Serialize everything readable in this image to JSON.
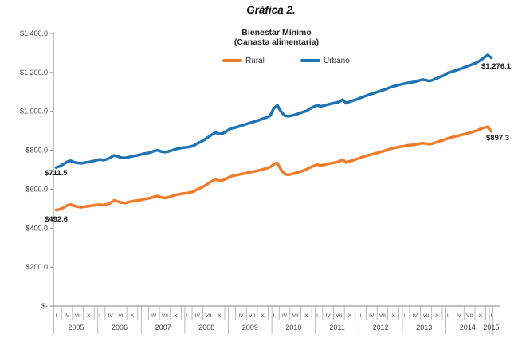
{
  "page": {
    "title": "Gráfica 2."
  },
  "chart": {
    "title_line1": "Bienestar Mínimo",
    "title_line2": "(Canasta alimentaria)",
    "legend": [
      {
        "name": "Rural",
        "color": "#f07c2b"
      },
      {
        "name": "Urbano",
        "color": "#1e73b5"
      }
    ],
    "annotations": {
      "urbano_start": "$711.5",
      "rural_start": "$492.6",
      "urbano_end": "$1,276.1",
      "rural_end": "$897.3"
    }
  },
  "chart_data": {
    "type": "line",
    "title": "Bienestar Mínimo (Canasta alimentaria)",
    "ylabel": "",
    "xlabel": "",
    "ylim": [
      0,
      1400
    ],
    "grid": false,
    "legend_position": "top-center",
    "axis_color": "#808080",
    "separator_color": "#ababab",
    "text_color": "#3c3c3c",
    "y_ticks": [
      {
        "label": "$1,400.0",
        "value": 1400
      },
      {
        "label": "$1,200.0",
        "value": 1200
      },
      {
        "label": "$1,000.0",
        "value": 1000
      },
      {
        "label": "$800.0",
        "value": 800
      },
      {
        "label": "$600.0",
        "value": 600
      },
      {
        "label": "$400.0",
        "value": 400
      },
      {
        "label": "$200.0",
        "value": 200
      },
      {
        "label": "$-",
        "value": 0
      }
    ],
    "x_axis": {
      "frequency": "monthly",
      "start": "2005-01",
      "end": "2015-01",
      "month_tick_labels": [
        "I",
        "IV",
        "VII",
        "X"
      ],
      "years": [
        {
          "label": "2005",
          "months": 12
        },
        {
          "label": "2006",
          "months": 12
        },
        {
          "label": "2007",
          "months": 12
        },
        {
          "label": "2008",
          "months": 12
        },
        {
          "label": "2009",
          "months": 12
        },
        {
          "label": "2010",
          "months": 12
        },
        {
          "label": "2011",
          "months": 12
        },
        {
          "label": "2012",
          "months": 12
        },
        {
          "label": "2013",
          "months": 12
        },
        {
          "label": "2014",
          "months": 12
        },
        {
          "label": "2015",
          "months": 1
        }
      ]
    },
    "series": [
      {
        "name": "Rural",
        "color": "#f07c2b",
        "first_value": 492.6,
        "last_value": 897.3,
        "values": [
          492.6,
          496.8,
          504.9,
          516.8,
          521.9,
          513.8,
          509.9,
          507.8,
          510.9,
          512.8,
          515.9,
          518.8,
          520.9,
          517.8,
          521.9,
          529.8,
          542.6,
          536.8,
          530.9,
          528.8,
          533.7,
          537.8,
          540.6,
          542.8,
          547.8,
          550.9,
          554.8,
          560.7,
          564.8,
          557.9,
          554.8,
          558.7,
          564.6,
          570.8,
          574.7,
          577.8,
          579.9,
          582.8,
          588.7,
          599.8,
          607.6,
          617.8,
          629.7,
          641.8,
          649.6,
          642.8,
          645.9,
          654.7,
          664.8,
          668.7,
          672.8,
          676.9,
          680.8,
          684.7,
          688.8,
          692.7,
          696.8,
          701.7,
          706.8,
          713.7,
          727.8,
          734.6,
          699.8,
          677.9,
          673.8,
          677.7,
          682.8,
          688.7,
          694.8,
          700.7,
          711.8,
          719.7,
          725.8,
          721.7,
          725.6,
          729.8,
          733.7,
          737.8,
          741.7,
          751.8,
          736.7,
          743.8,
          749.7,
          755.8,
          761.7,
          767.8,
          773.7,
          778.8,
          783.7,
          788.8,
          793.7,
          799.8,
          805.7,
          810.8,
          814.7,
          818.8,
          821.7,
          824.8,
          826.9,
          828.8,
          832.7,
          836.8,
          833.7,
          830.8,
          835.7,
          841.8,
          847.7,
          852.8,
          860.7,
          865.8,
          870.7,
          874.8,
          879.7,
          884.8,
          889.7,
          894.8,
          900.7,
          908.8,
          915.7,
          920.6,
          897.3
        ]
      },
      {
        "name": "Urbano",
        "color": "#1e73b5",
        "first_value": 711.5,
        "last_value": 1276.1,
        "values": [
          711.5,
          718.2,
          728.4,
          740.1,
          746.3,
          738.5,
          734.8,
          733.2,
          736.9,
          739.4,
          743.2,
          747.8,
          752.9,
          749.6,
          753.8,
          762.7,
          773.6,
          767.9,
          761.8,
          760.1,
          764.7,
          768.8,
          772.5,
          775.9,
          781.6,
          784.9,
          788.8,
          795.6,
          799.8,
          793.2,
          790.4,
          793.9,
          799.6,
          805.8,
          809.9,
          812.8,
          815.3,
          818.4,
          824.2,
          835.7,
          844.0,
          854.8,
          867.6,
          880.9,
          890.6,
          883.8,
          886.9,
          897.7,
          909.8,
          914.6,
          919.9,
          925.8,
          931.6,
          937.7,
          943.2,
          948.8,
          954.9,
          961.8,
          968.2,
          976.8,
          1014.6,
          1030.8,
          999.7,
          978.3,
          973.9,
          977.8,
          982.6,
          989.7,
          995.8,
          1001.9,
          1013.6,
          1022.8,
          1030.6,
          1025.9,
          1029.8,
          1034.7,
          1039.8,
          1043.9,
          1047.8,
          1059.6,
          1041.9,
          1049.8,
          1055.7,
          1061.9,
          1069.8,
          1076.7,
          1083.6,
          1089.8,
          1095.7,
          1101.8,
          1107.7,
          1114.6,
          1121.8,
          1127.6,
          1132.8,
          1137.7,
          1141.8,
          1145.7,
          1148.9,
          1151.8,
          1157.6,
          1162.8,
          1159.7,
          1155.8,
          1161.9,
          1169.7,
          1177.8,
          1184.9,
          1196.8,
          1202.7,
          1208.9,
          1214.8,
          1221.7,
          1228.8,
          1235.9,
          1242.8,
          1250.7,
          1261.9,
          1275.8,
          1289.6,
          1276.1
        ]
      }
    ]
  }
}
